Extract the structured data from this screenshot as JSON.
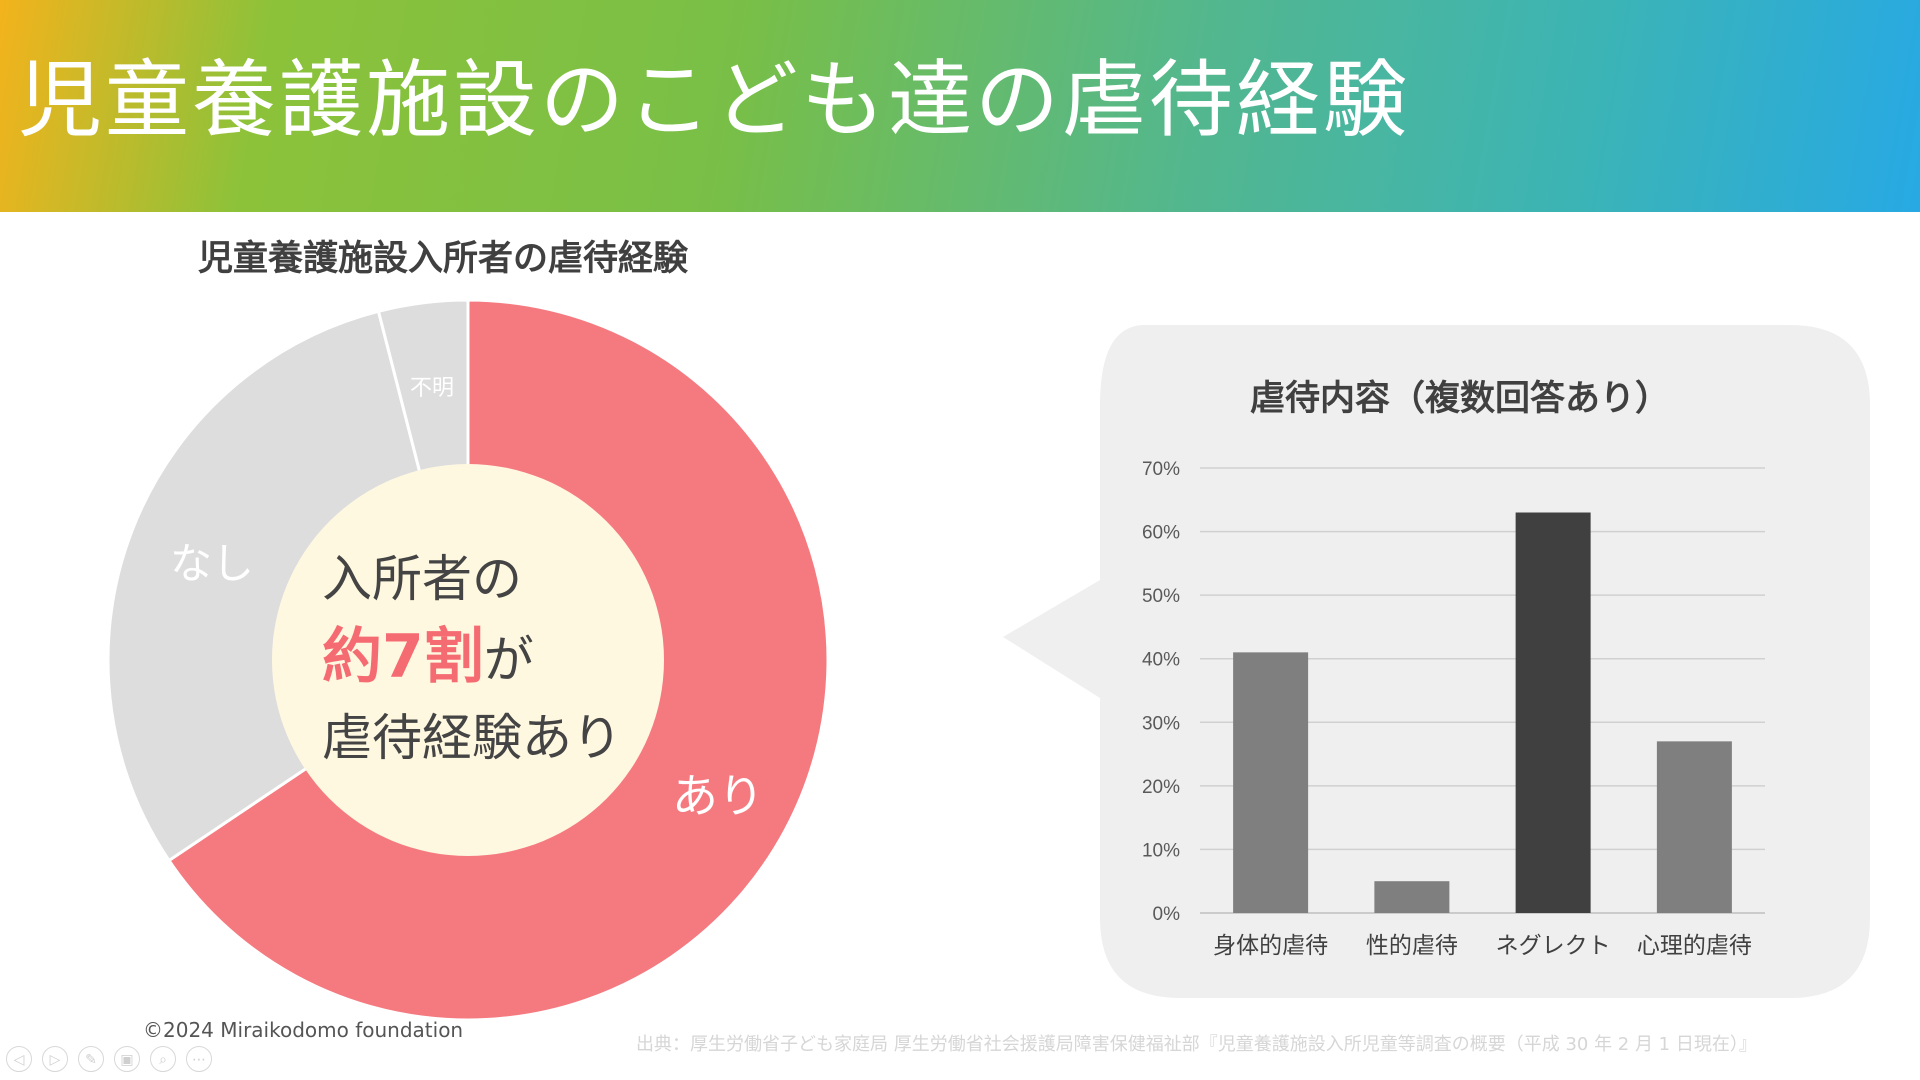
{
  "slide": {
    "title": "児童養護施設のこども達の虐待経験",
    "copyright": "©2024 Miraikodomo foundation",
    "source": "出典：厚生労働省子ども家庭局 厚生労働省社会援護局障害保健福祉部『児童養護施設入所児童等調査の概要（平成 30 年 2 月 1 日現在）』"
  },
  "colors": {
    "accent": "#f57a80",
    "center_fill": "#fff8e1",
    "gray_segment": "#dddddd",
    "bar_gray": "#7f7f7f",
    "bar_dark": "#404040",
    "bubble_bg": "#efefef"
  },
  "donut": {
    "title": "児童養護施設入所者の虐待経験",
    "center_line1": "入所者の",
    "center_highlight": "約7割",
    "center_line2_suffix": "が",
    "center_line3": "虐待経験あり",
    "label_ari": "あり",
    "label_nashi": "なし",
    "label_fumei": "不明"
  },
  "bar": {
    "title": "虐待内容（複数回答あり）"
  },
  "chart_data": [
    {
      "type": "pie",
      "title": "児童養護施設入所者の虐待経験",
      "categories": [
        "あり",
        "なし",
        "不明"
      ],
      "values": [
        65.6,
        30.4,
        4.0
      ],
      "colors": [
        "#f57a80",
        "#dddddd",
        "#dddddd"
      ]
    },
    {
      "type": "bar",
      "title": "虐待内容（複数回答あり）",
      "categories": [
        "身体的虐待",
        "性的虐待",
        "ネグレクト",
        "心理的虐待"
      ],
      "values": [
        41,
        5,
        63,
        27
      ],
      "unit": "%",
      "ylim": [
        0,
        70
      ],
      "yticks": [
        "0%",
        "10%",
        "20%",
        "30%",
        "40%",
        "50%",
        "60%",
        "70%"
      ],
      "grid": true,
      "highlight": "ネグレクト"
    }
  ],
  "nav_icons": [
    "prev-icon",
    "next-icon",
    "pen-icon",
    "slides-icon",
    "zoom-icon",
    "more-icon"
  ]
}
